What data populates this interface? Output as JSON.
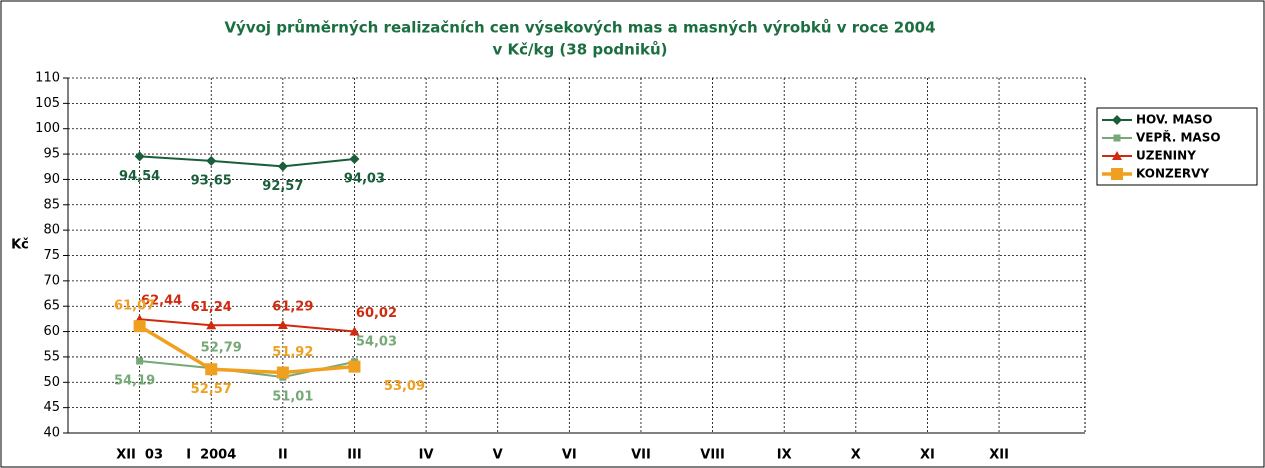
{
  "chart_data": {
    "type": "line",
    "title": "Vývoj průměrných realizačních cen výsekových mas a masných výrobků v roce 2004",
    "subtitle": "v  Kč/kg (38 podniků)",
    "y_label": "Kč",
    "categories": [
      "XII  03",
      "I  2004",
      "II",
      "III",
      "IV",
      "V",
      "VI",
      "VII",
      "VIII",
      "IX",
      "X",
      "XI",
      "XII"
    ],
    "series": [
      {
        "name": "HOV. MASO",
        "color": "#1b5e3b",
        "values": [
          94.54,
          93.65,
          92.57,
          94.03,
          null,
          null,
          null,
          null,
          null,
          null,
          null,
          null,
          null
        ],
        "value_labels": [
          "94,54",
          "93,65",
          "92,57",
          "94,03",
          null,
          null,
          null,
          null,
          null,
          null,
          null,
          null,
          null
        ]
      },
      {
        "name": "VEPŘ. MASO",
        "color": "#77a877",
        "values": [
          54.19,
          52.79,
          51.01,
          54.03,
          null,
          null,
          null,
          null,
          null,
          null,
          null,
          null,
          null
        ],
        "value_labels": [
          "54,19",
          "52,79",
          "51,01",
          "54,03",
          null,
          null,
          null,
          null,
          null,
          null,
          null,
          null,
          null
        ]
      },
      {
        "name": "UZENINY",
        "color": "#d02a10",
        "values": [
          62.44,
          61.24,
          61.29,
          60.02,
          null,
          null,
          null,
          null,
          null,
          null,
          null,
          null,
          null
        ],
        "value_labels": [
          "62,44",
          "61,24",
          "61,29",
          "60,02",
          null,
          null,
          null,
          null,
          null,
          null,
          null,
          null,
          null
        ]
      },
      {
        "name": "KONZERVY",
        "color": "#f0a020",
        "values": [
          61.07,
          52.57,
          51.92,
          53.09,
          null,
          null,
          null,
          null,
          null,
          null,
          null,
          null,
          null
        ],
        "value_labels": [
          "61,07",
          "52,57",
          "51,92",
          "53,09",
          null,
          null,
          null,
          null,
          null,
          null,
          null,
          null,
          null
        ]
      }
    ],
    "ylim": [
      40,
      110
    ],
    "yticks": [
      40,
      45,
      50,
      55,
      60,
      65,
      70,
      75,
      80,
      85,
      90,
      95,
      100,
      105,
      110
    ],
    "grid": true,
    "legend": "right"
  }
}
